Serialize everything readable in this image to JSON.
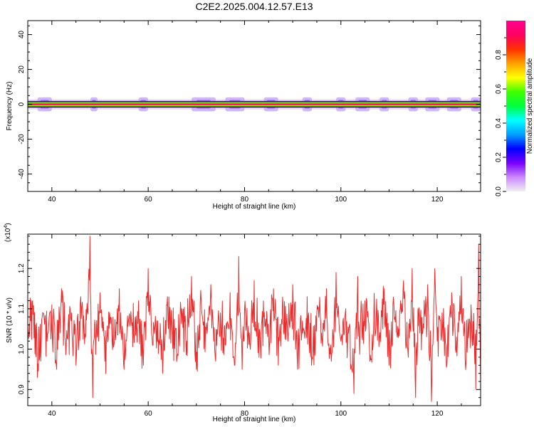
{
  "title": "C2E2.2025.004.12.57.E13",
  "spectrogram": {
    "type": "heatmap",
    "xlabel": "Height of straight line (km)",
    "ylabel": "Frequency (Hz)",
    "xlim": [
      35,
      129
    ],
    "ylim": [
      -50,
      48
    ],
    "xticks": [
      40,
      60,
      80,
      100,
      120
    ],
    "xtick_labels": [
      "40",
      "60",
      "80",
      "100",
      "120"
    ],
    "yticks": [
      -40,
      -20,
      0,
      20,
      40
    ],
    "ytick_labels": [
      "-40",
      "-20",
      "0",
      "20",
      "40"
    ],
    "band_center_hz": 0,
    "band_halfwidth_hz": 1.5,
    "grid": false,
    "spread_regions_km": [
      {
        "x": 37,
        "w": 3
      },
      {
        "x": 48,
        "w": 1.5
      },
      {
        "x": 58,
        "w": 2
      },
      {
        "x": 69,
        "w": 5
      },
      {
        "x": 76,
        "w": 4
      },
      {
        "x": 84,
        "w": 3
      },
      {
        "x": 92,
        "w": 2
      },
      {
        "x": 99,
        "w": 2
      },
      {
        "x": 103,
        "w": 3
      },
      {
        "x": 108,
        "w": 2
      },
      {
        "x": 114,
        "w": 2
      },
      {
        "x": 117.5,
        "w": 3
      },
      {
        "x": 122,
        "w": 3
      },
      {
        "x": 127,
        "w": 2
      }
    ]
  },
  "colorbar": {
    "label": "Normalized spectral amplitude",
    "range": [
      0,
      1
    ],
    "ticks": [
      0.0,
      0.2,
      0.4,
      0.6,
      0.8
    ],
    "tick_labels": [
      "0.0",
      "0.2",
      "0.4",
      "0.6",
      "0.8"
    ],
    "colors": [
      "#f0f0f0",
      "#cc88ff",
      "#7a00ff",
      "#0000ff",
      "#00a0ff",
      "#00ffff",
      "#00ff40",
      "#40ff00",
      "#ffff00",
      "#ffa000",
      "#ff3000",
      "#ff0060",
      "#ff0090"
    ]
  },
  "snr": {
    "type": "line",
    "xlabel": "Height of straight line (km)",
    "ylabel": "SNR (10 * v/v)",
    "multiplier": "(x10",
    "multiplier_exp": "4",
    "multiplier_close": ")",
    "xlim": [
      35,
      129
    ],
    "ylim": [
      0.86,
      1.285
    ],
    "xticks": [
      40,
      60,
      80,
      100,
      120
    ],
    "xtick_labels": [
      "40",
      "60",
      "80",
      "100",
      "120"
    ],
    "yticks": [
      0.9,
      1.0,
      1.1,
      1.2
    ],
    "ytick_labels": [
      "0.9",
      "1.0",
      "1.1",
      "1.2"
    ],
    "line_color": "#ee2b2b",
    "grid": false
  },
  "chart_data": [
    {
      "type": "heatmap",
      "title": "C2E2.2025.004.12.57.E13",
      "xlabel": "Height of straight line (km)",
      "ylabel": "Frequency (Hz)",
      "xlim": [
        35,
        129
      ],
      "ylim": [
        -50,
        48
      ],
      "colorbar_label": "Normalized spectral amplitude",
      "colorbar_range": [
        0,
        1
      ]
    },
    {
      "type": "line",
      "xlabel": "Height of straight line (km)",
      "ylabel": "SNR (10 * v/v)",
      "xlim": [
        35,
        129
      ],
      "ylim": [
        0.86,
        1.285
      ],
      "y_multiplier": "x10^4",
      "series": [
        {
          "x": [
            35,
            36,
            37,
            38,
            39,
            40,
            41,
            42,
            43,
            44,
            45,
            46,
            47,
            47.9,
            48.5,
            49,
            50,
            51,
            52,
            53,
            54,
            55,
            56,
            57,
            58,
            59,
            60,
            61,
            62,
            63,
            64,
            65,
            66,
            67,
            68,
            69,
            70,
            71,
            72,
            73,
            74,
            75,
            76,
            77,
            78,
            78.8,
            79.5,
            80,
            81,
            82,
            83,
            84,
            85,
            86,
            87,
            88,
            89,
            90,
            91,
            92,
            93,
            94,
            95,
            96,
            97,
            98,
            99,
            100,
            101,
            102,
            102.7,
            103.5,
            104,
            105,
            106,
            107,
            108,
            109,
            110,
            111,
            112,
            113,
            114,
            114.8,
            115.5,
            116,
            117,
            118,
            118.8,
            119.5,
            120,
            121,
            122,
            123,
            124,
            125,
            126,
            127,
            128,
            128.6,
            129
          ],
          "y": [
            1.05,
            1.12,
            0.93,
            1.08,
            1.02,
            1.11,
            0.95,
            1.15,
            1.01,
            1.07,
            0.96,
            1.13,
            1.03,
            1.28,
            0.88,
            1.06,
            1.14,
            0.97,
            1.09,
            1.02,
            1.15,
            0.95,
            1.08,
            1.03,
            1.12,
            0.96,
            1.2,
            1.01,
            1.07,
            0.94,
            1.13,
            1.04,
            0.98,
            1.1,
            1.02,
            1.18,
            0.95,
            1.12,
            1.05,
            1.16,
            0.97,
            1.09,
            1.01,
            1.14,
            0.96,
            1.23,
            0.95,
            1.1,
            1.04,
            1.17,
            0.98,
            1.08,
            1.03,
            1.15,
            0.96,
            1.11,
            1.02,
            1.16,
            0.95,
            1.07,
            1.13,
            0.98,
            1.09,
            1.04,
            1.15,
            0.97,
            1.19,
            1.02,
            1.1,
            0.95,
            0.89,
            1.18,
            1.04,
            1.12,
            0.97,
            1.09,
            1.03,
            1.15,
            0.96,
            1.11,
            1.05,
            1.17,
            0.98,
            1.2,
            0.88,
            1.1,
            1.04,
            1.16,
            0.87,
            1.2,
            1.02,
            1.09,
            0.96,
            1.14,
            1.03,
            1.18,
            0.97,
            1.11,
            0.9,
            1.26,
            0.92
          ]
        }
      ]
    }
  ]
}
